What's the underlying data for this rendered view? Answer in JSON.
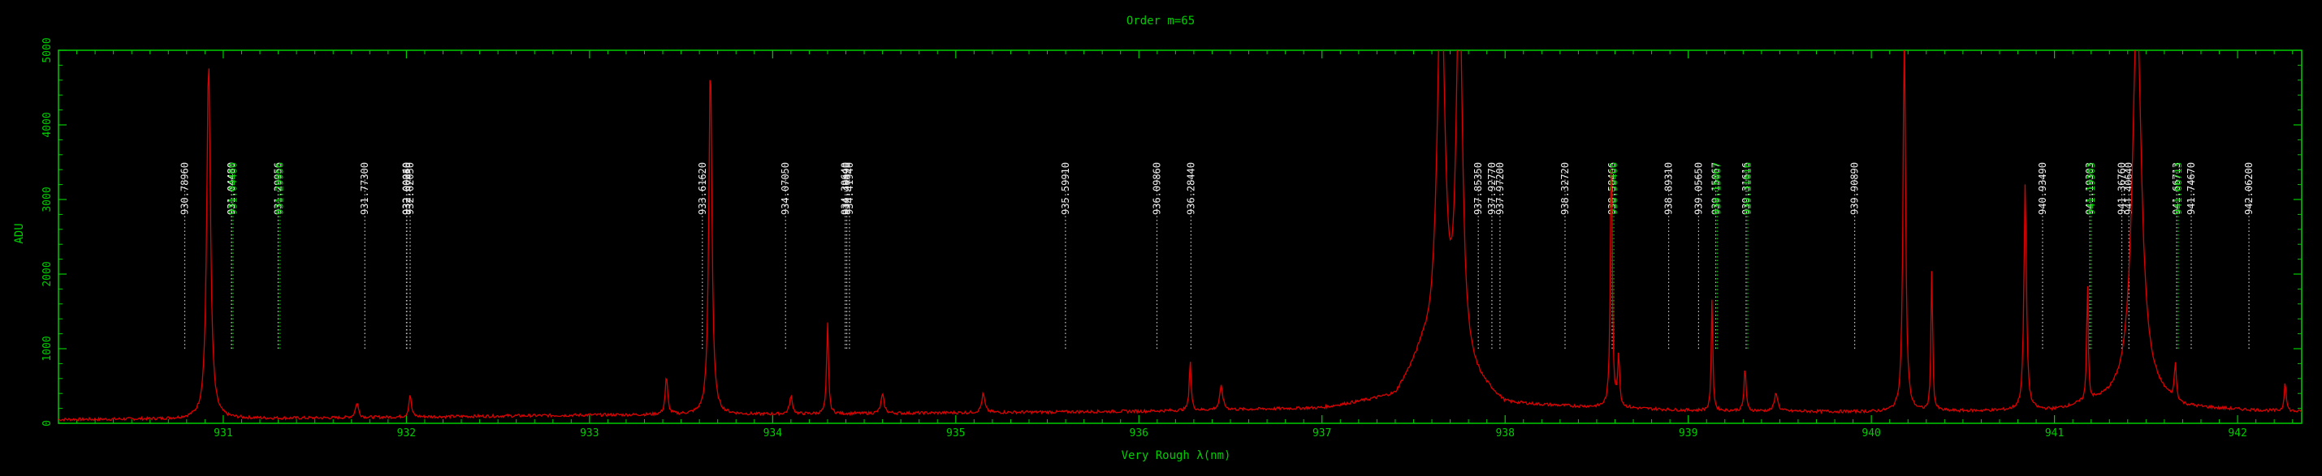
{
  "colors": {
    "background": "#000000",
    "axis": "#00cc00",
    "spectrum": "#dd0000",
    "line_marker": "#cccccc",
    "line_marker_alt": "#00cc00",
    "label_white": "#eeeeee",
    "label_green": "#00cc00"
  },
  "chart_data": {
    "type": "line",
    "title": "Order m=65",
    "xlabel": "Very Rough λ(nm)",
    "ylabel": "ADU",
    "xlim": [
      930.1,
      942.35
    ],
    "ylim": [
      0,
      5000
    ],
    "x_ticks": [
      931,
      932,
      933,
      934,
      935,
      936,
      937,
      938,
      939,
      940,
      941,
      942
    ],
    "y_ticks": [
      0,
      1000,
      2000,
      3000,
      4000,
      5000
    ],
    "grid": false,
    "series": [
      {
        "color": "#dd0000",
        "baseline": [
          [
            930.1,
            50
          ],
          [
            931.5,
            70
          ],
          [
            933.0,
            110
          ],
          [
            934.0,
            120
          ],
          [
            935.0,
            140
          ],
          [
            936.0,
            160
          ],
          [
            937.0,
            200
          ],
          [
            937.4,
            350
          ],
          [
            937.55,
            900
          ],
          [
            937.8,
            600
          ],
          [
            938.0,
            250
          ],
          [
            939.0,
            170
          ],
          [
            940.0,
            150
          ],
          [
            941.0,
            170
          ],
          [
            941.3,
            300
          ],
          [
            941.5,
            400
          ],
          [
            941.7,
            200
          ],
          [
            942.35,
            150
          ]
        ],
        "peaks": [
          {
            "x": 930.92,
            "y": 4800,
            "w": 0.012
          },
          {
            "x": 931.73,
            "y": 200,
            "w": 0.01
          },
          {
            "x": 932.02,
            "y": 300,
            "w": 0.008
          },
          {
            "x": 933.42,
            "y": 500,
            "w": 0.008
          },
          {
            "x": 933.66,
            "y": 4750,
            "w": 0.01
          },
          {
            "x": 934.3,
            "y": 1230,
            "w": 0.006
          },
          {
            "x": 934.1,
            "y": 230,
            "w": 0.01
          },
          {
            "x": 934.6,
            "y": 250,
            "w": 0.01
          },
          {
            "x": 935.15,
            "y": 250,
            "w": 0.01
          },
          {
            "x": 936.28,
            "y": 680,
            "w": 0.006
          },
          {
            "x": 936.45,
            "y": 320,
            "w": 0.01
          },
          {
            "x": 937.65,
            "y": 5200,
            "w": 0.025
          },
          {
            "x": 937.75,
            "y": 5200,
            "w": 0.02
          },
          {
            "x": 938.58,
            "y": 3550,
            "w": 0.006
          },
          {
            "x": 938.62,
            "y": 700,
            "w": 0.006
          },
          {
            "x": 939.13,
            "y": 1500,
            "w": 0.005
          },
          {
            "x": 939.31,
            "y": 600,
            "w": 0.006
          },
          {
            "x": 939.48,
            "y": 250,
            "w": 0.01
          },
          {
            "x": 940.18,
            "y": 5200,
            "w": 0.008
          },
          {
            "x": 940.33,
            "y": 2000,
            "w": 0.005
          },
          {
            "x": 940.84,
            "y": 3050,
            "w": 0.008
          },
          {
            "x": 941.18,
            "y": 1620,
            "w": 0.005
          },
          {
            "x": 941.45,
            "y": 5200,
            "w": 0.03
          },
          {
            "x": 941.66,
            "y": 500,
            "w": 0.006
          },
          {
            "x": 942.26,
            "y": 420,
            "w": 0.006
          }
        ]
      }
    ],
    "line_ids": [
      {
        "x": 930.7896,
        "label": "930.78960",
        "color": "white"
      },
      {
        "x": 931.0448,
        "label": "931.04480",
        "color": "white"
      },
      {
        "x": 931.0448,
        "label": "931.04480",
        "color": "white"
      },
      {
        "x": 931.0448,
        "label": "931.04480",
        "color": "green"
      },
      {
        "x": 931.29956,
        "label": "931.29956",
        "color": "white"
      },
      {
        "x": 931.29956,
        "label": "931.29956",
        "color": "green"
      },
      {
        "x": 931.773,
        "label": "931.77300",
        "color": "white"
      },
      {
        "x": 932.0004,
        "label": "932.00040",
        "color": "white"
      },
      {
        "x": 932.0025,
        "label": "932.00250",
        "color": "white"
      },
      {
        "x": 932.0205,
        "label": "932.02050",
        "color": "white"
      },
      {
        "x": 933.6162,
        "label": "933.61620",
        "color": "white"
      },
      {
        "x": 934.0705,
        "label": "934.07050",
        "color": "white"
      },
      {
        "x": 934.3964,
        "label": "934.39640",
        "color": "white"
      },
      {
        "x": 934.4049,
        "label": "934.40490",
        "color": "white"
      },
      {
        "x": 934.4194,
        "label": "934.41940",
        "color": "white"
      },
      {
        "x": 935.5991,
        "label": "935.59910",
        "color": "white"
      },
      {
        "x": 936.0986,
        "label": "936.09860",
        "color": "white"
      },
      {
        "x": 936.2844,
        "label": "936.28440",
        "color": "white"
      },
      {
        "x": 937.8535,
        "label": "937.85350",
        "color": "white"
      },
      {
        "x": 937.9277,
        "label": "937.92770",
        "color": "white"
      },
      {
        "x": 937.972,
        "label": "937.97200",
        "color": "white"
      },
      {
        "x": 938.3272,
        "label": "938.32720",
        "color": "white"
      },
      {
        "x": 938.58466,
        "label": "938.58466",
        "color": "white"
      },
      {
        "x": 938.58466,
        "label": "938.58466",
        "color": "green"
      },
      {
        "x": 938.8931,
        "label": "938.89310",
        "color": "white"
      },
      {
        "x": 939.0565,
        "label": "939.05650",
        "color": "white"
      },
      {
        "x": 939.15067,
        "label": "939.15067",
        "color": "white"
      },
      {
        "x": 939.15067,
        "label": "939.15067",
        "color": "green"
      },
      {
        "x": 939.31616,
        "label": "939.31616",
        "color": "white"
      },
      {
        "x": 939.31616,
        "label": "939.31616",
        "color": "green"
      },
      {
        "x": 939.9089,
        "label": "939.90890",
        "color": "white"
      },
      {
        "x": 940.9349,
        "label": "940.93490",
        "color": "white"
      },
      {
        "x": 941.19303,
        "label": "941.19303",
        "color": "white"
      },
      {
        "x": 941.19303,
        "label": "941.19303",
        "color": "green"
      },
      {
        "x": 941.3676,
        "label": "941.36760",
        "color": "white"
      },
      {
        "x": 941.4064,
        "label": "941.40640",
        "color": "white"
      },
      {
        "x": 941.66713,
        "label": "941.66713",
        "color": "white"
      },
      {
        "x": 941.66713,
        "label": "941.66713",
        "color": "green"
      },
      {
        "x": 941.7467,
        "label": "941.74670",
        "color": "white"
      },
      {
        "x": 942.062,
        "label": "942.06200",
        "color": "white"
      }
    ]
  }
}
